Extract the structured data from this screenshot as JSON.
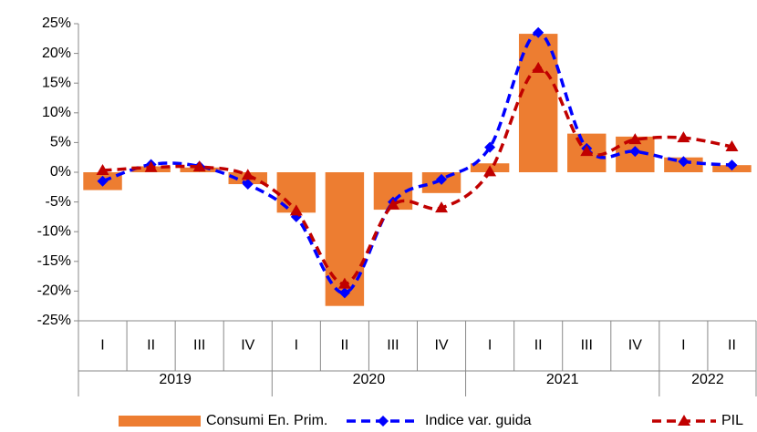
{
  "chart_data": {
    "type": "bar_line",
    "categories": [
      "I",
      "II",
      "III",
      "IV",
      "I",
      "II",
      "III",
      "IV",
      "I",
      "II",
      "III",
      "IV",
      "I",
      "II"
    ],
    "groups": [
      {
        "label": "2019",
        "span": 4
      },
      {
        "label": "2020",
        "span": 4
      },
      {
        "label": "2021",
        "span": 4
      },
      {
        "label": "2022",
        "span": 2
      }
    ],
    "series": [
      {
        "name": "Consumi En. Prim.",
        "type": "bar",
        "color": "#ed7d31",
        "values": [
          -3.0,
          1.0,
          0.8,
          -2.0,
          -6.8,
          -22.5,
          -6.3,
          -3.5,
          1.5,
          23.3,
          6.5,
          6.0,
          2.5,
          1.2
        ]
      },
      {
        "name": "Indice var. guida",
        "type": "line",
        "marker": "diamond",
        "color": "#0000ff",
        "values": [
          -1.5,
          1.3,
          1.0,
          -2.0,
          -7.5,
          -20.3,
          -5.0,
          -1.2,
          4.2,
          23.5,
          4.0,
          3.5,
          1.8,
          1.2
        ]
      },
      {
        "name": "PIL",
        "type": "line",
        "marker": "triangle",
        "color": "#c00000",
        "values": [
          0.3,
          0.8,
          0.9,
          -0.5,
          -6.5,
          -18.8,
          -5.5,
          -6.0,
          0.1,
          17.5,
          3.5,
          5.5,
          5.8,
          4.3
        ]
      }
    ],
    "ylim": [
      -25,
      25
    ],
    "yticks": [
      {
        "value": -25,
        "label": "-25%"
      },
      {
        "value": -20,
        "label": "-20%"
      },
      {
        "value": -15,
        "label": "-15%"
      },
      {
        "value": -10,
        "label": "-10%"
      },
      {
        "value": -5,
        "label": "-5%"
      },
      {
        "value": 0,
        "label": "0%"
      },
      {
        "value": 5,
        "label": "5%"
      },
      {
        "value": 10,
        "label": "10%"
      },
      {
        "value": 15,
        "label": "15%"
      },
      {
        "value": 20,
        "label": "20%"
      },
      {
        "value": 25,
        "label": "25%"
      }
    ]
  }
}
